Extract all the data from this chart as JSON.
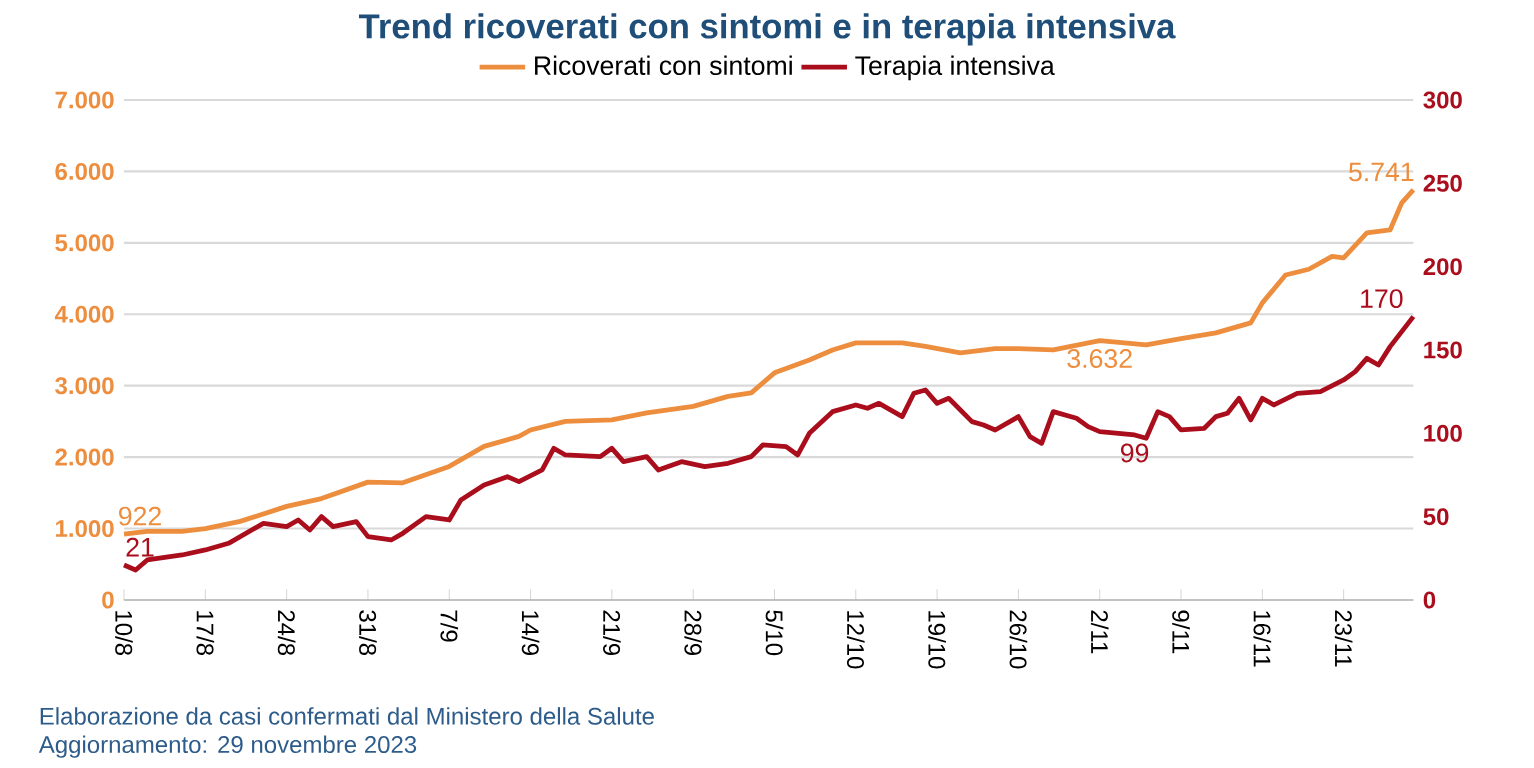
{
  "chart_data": {
    "type": "line",
    "title": "Trend ricoverati con sintomi e in terapia intensiva",
    "annotations": [
      "Elaborazione da casi confermati dal Ministero della Salute",
      "Aggiornamento: 29 novembre 2023"
    ],
    "xlim": [
      "2023-08-10",
      "2023-11-29"
    ],
    "xticks": [
      {
        "value": "2023-08-10",
        "label": "10/8"
      },
      {
        "value": "2023-08-17",
        "label": "17/8"
      },
      {
        "value": "2023-08-24",
        "label": "24/8"
      },
      {
        "value": "2023-08-31",
        "label": "31/8"
      },
      {
        "value": "2023-09-07",
        "label": "7/9"
      },
      {
        "value": "2023-09-14",
        "label": "14/9"
      },
      {
        "value": "2023-09-21",
        "label": "21/9"
      },
      {
        "value": "2023-09-28",
        "label": "28/9"
      },
      {
        "value": "2023-10-05",
        "label": "5/10"
      },
      {
        "value": "2023-10-12",
        "label": "12/10"
      },
      {
        "value": "2023-10-19",
        "label": "19/10"
      },
      {
        "value": "2023-10-26",
        "label": "26/10"
      },
      {
        "value": "2023-11-02",
        "label": "2/11"
      },
      {
        "value": "2023-11-09",
        "label": "9/11"
      },
      {
        "value": "2023-11-16",
        "label": "16/11"
      },
      {
        "value": "2023-11-23",
        "label": "23/11"
      }
    ],
    "ylim": [
      0,
      7000
    ],
    "yticks": [
      {
        "value": 0,
        "label": "0"
      },
      {
        "value": 1000,
        "label": "1.000"
      },
      {
        "value": 2000,
        "label": "2.000"
      },
      {
        "value": 3000,
        "label": "3.000"
      },
      {
        "value": 4000,
        "label": "4.000"
      },
      {
        "value": 5000,
        "label": "5.000"
      },
      {
        "value": 6000,
        "label": "6.000"
      },
      {
        "value": 7000,
        "label": "7.000"
      }
    ],
    "y2lim": [
      0,
      300
    ],
    "y2ticks": [
      0,
      50,
      100,
      150,
      200,
      250,
      300
    ],
    "grid": "y",
    "legend": "top",
    "marker": "none",
    "line_style": "solid",
    "series": [
      {
        "name": "Ricoverati con sintomi",
        "color": "#ed8d3e",
        "x": [
          "2023-08-10",
          "2023-08-12",
          "2023-08-15",
          "2023-08-17",
          "2023-08-20",
          "2023-08-24",
          "2023-08-27",
          "2023-08-31",
          "2023-09-03",
          "2023-09-07",
          "2023-09-10",
          "2023-09-13",
          "2023-09-14",
          "2023-09-17",
          "2023-09-21",
          "2023-09-24",
          "2023-09-28",
          "2023-10-01",
          "2023-10-03",
          "2023-10-05",
          "2023-10-08",
          "2023-10-10",
          "2023-10-12",
          "2023-10-16",
          "2023-10-18",
          "2023-10-21",
          "2023-10-24",
          "2023-10-26",
          "2023-10-29",
          "2023-11-02",
          "2023-11-06",
          "2023-11-09",
          "2023-11-12",
          "2023-11-15",
          "2023-11-16",
          "2023-11-18",
          "2023-11-20",
          "2023-11-22",
          "2023-11-23",
          "2023-11-25",
          "2023-11-27",
          "2023-11-28",
          "2023-11-29"
        ],
        "values": [
          922,
          960,
          960,
          1000,
          1100,
          1310,
          1420,
          1650,
          1640,
          1870,
          2150,
          2290,
          2380,
          2500,
          2520,
          2620,
          2710,
          2850,
          2900,
          3180,
          3360,
          3500,
          3600,
          3600,
          3550,
          3460,
          3520,
          3520,
          3500,
          3632,
          3570,
          3660,
          3740,
          3880,
          4160,
          4550,
          4630,
          4810,
          4790,
          5140,
          5180,
          5560,
          5741
        ],
        "value_labels": [
          "922",
          null,
          null,
          null,
          null,
          null,
          null,
          null,
          null,
          null,
          null,
          null,
          null,
          null,
          null,
          null,
          null,
          null,
          null,
          null,
          null,
          null,
          null,
          null,
          null,
          null,
          null,
          null,
          null,
          "3.632",
          null,
          null,
          null,
          null,
          null,
          null,
          null,
          null,
          null,
          null,
          null,
          null,
          "5.741"
        ]
      },
      {
        "name": "Terapia intensiva",
        "color": "#aa0e1c",
        "axis": "y2",
        "x": [
          "2023-08-10",
          "2023-08-11",
          "2023-08-12",
          "2023-08-15",
          "2023-08-17",
          "2023-08-19",
          "2023-08-22",
          "2023-08-24",
          "2023-08-25",
          "2023-08-26",
          "2023-08-27",
          "2023-08-28",
          "2023-08-30",
          "2023-08-31",
          "2023-09-02",
          "2023-09-03",
          "2023-09-05",
          "2023-09-07",
          "2023-09-08",
          "2023-09-10",
          "2023-09-12",
          "2023-09-13",
          "2023-09-15",
          "2023-09-16",
          "2023-09-17",
          "2023-09-20",
          "2023-09-21",
          "2023-09-22",
          "2023-09-24",
          "2023-09-25",
          "2023-09-27",
          "2023-09-29",
          "2023-10-01",
          "2023-10-03",
          "2023-10-04",
          "2023-10-06",
          "2023-10-07",
          "2023-10-08",
          "2023-10-10",
          "2023-10-12",
          "2023-10-13",
          "2023-10-14",
          "2023-10-16",
          "2023-10-17",
          "2023-10-18",
          "2023-10-19",
          "2023-10-20",
          "2023-10-22",
          "2023-10-23",
          "2023-10-24",
          "2023-10-26",
          "2023-10-27",
          "2023-10-28",
          "2023-10-29",
          "2023-10-31",
          "2023-11-01",
          "2023-11-02",
          "2023-11-05",
          "2023-11-06",
          "2023-11-07",
          "2023-11-08",
          "2023-11-09",
          "2023-11-11",
          "2023-11-12",
          "2023-11-13",
          "2023-11-14",
          "2023-11-15",
          "2023-11-16",
          "2023-11-17",
          "2023-11-19",
          "2023-11-21",
          "2023-11-23",
          "2023-11-24",
          "2023-11-25",
          "2023-11-26",
          "2023-11-27",
          "2023-11-28",
          "2023-11-29"
        ],
        "values": [
          21,
          18,
          24,
          27,
          30,
          34,
          46,
          44,
          48,
          42,
          50,
          44,
          47,
          38,
          36,
          40,
          50,
          48,
          60,
          69,
          74,
          71,
          78,
          91,
          87,
          86,
          91,
          83,
          86,
          78,
          83,
          80,
          82,
          86,
          93,
          92,
          87,
          100,
          113,
          117,
          115,
          118,
          110,
          124,
          126,
          118,
          121,
          107,
          105,
          102,
          110,
          98,
          94,
          113,
          109,
          104,
          101,
          99,
          97,
          113,
          110,
          102,
          103,
          110,
          112,
          121,
          108,
          121,
          117,
          124,
          125,
          132,
          137,
          145,
          141,
          152,
          161,
          170
        ],
        "value_labels": [
          "21",
          null,
          null,
          null,
          null,
          null,
          null,
          null,
          null,
          null,
          null,
          null,
          null,
          null,
          null,
          null,
          null,
          null,
          null,
          null,
          null,
          null,
          null,
          null,
          null,
          null,
          null,
          null,
          null,
          null,
          null,
          null,
          null,
          null,
          null,
          null,
          null,
          null,
          null,
          null,
          null,
          null,
          null,
          null,
          null,
          null,
          null,
          null,
          null,
          null,
          null,
          null,
          null,
          null,
          null,
          null,
          null,
          "99",
          null,
          null,
          null,
          null,
          null,
          null,
          null,
          null,
          null,
          null,
          null,
          null,
          null,
          null,
          null,
          null,
          null,
          null,
          null,
          "170"
        ]
      }
    ]
  }
}
